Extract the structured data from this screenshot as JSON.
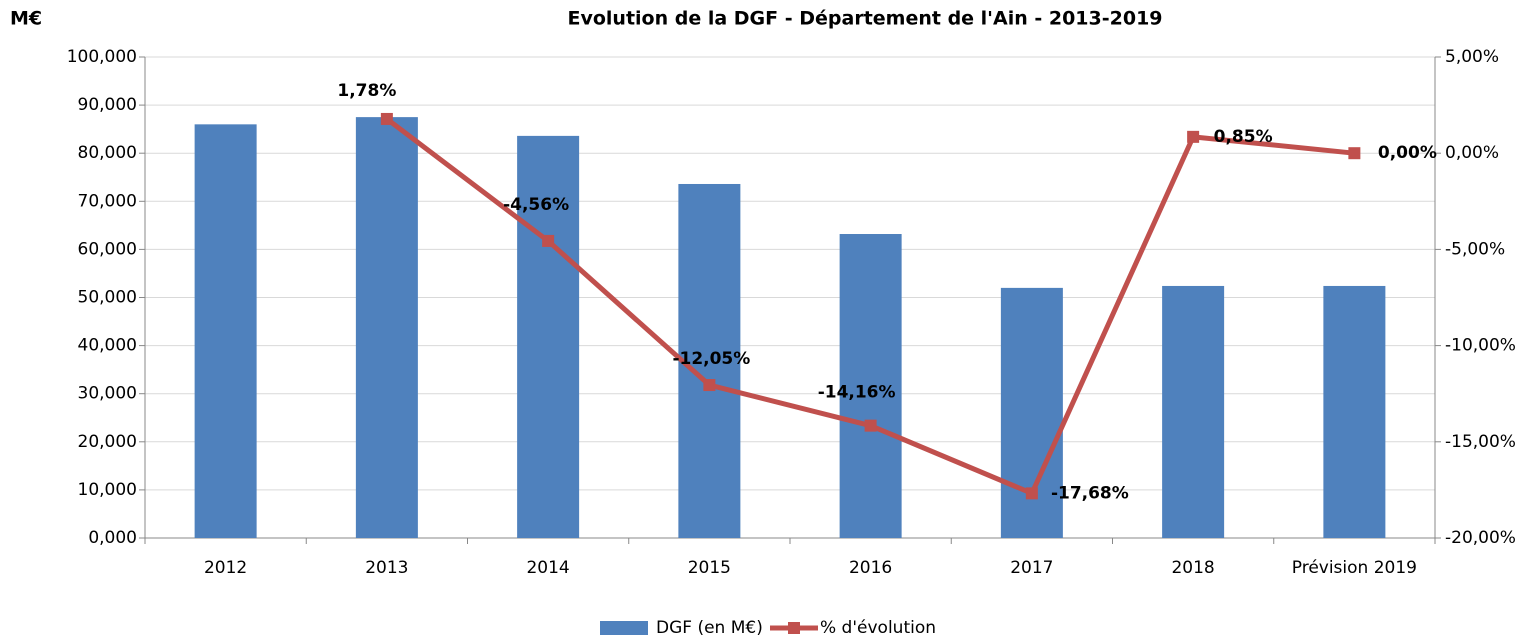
{
  "chart_data": {
    "type": "bar_line",
    "title": "Evolution de la DGF - Département de l'Ain - 2013-2019",
    "y_label": "M€",
    "categories": [
      "2012",
      "2013",
      "2014",
      "2015",
      "2016",
      "2017",
      "2018",
      "Prévision 2019"
    ],
    "series": [
      {
        "name": "DGF (en M€)",
        "type": "bar",
        "color": "#4f81bd",
        "values": [
          86.0,
          87.5,
          83.6,
          73.6,
          63.2,
          52.0,
          52.4,
          52.4
        ]
      },
      {
        "name": "% d'évolution",
        "type": "line",
        "axis": "y2",
        "color": "#c0504d",
        "values": [
          null,
          1.78,
          -4.56,
          -12.05,
          -14.16,
          -17.68,
          0.85,
          0.0
        ],
        "value_labels": [
          null,
          "1,78%",
          "-4,56%",
          "-12,05%",
          "-14,16%",
          "-17,68%",
          "0,85%",
          "0,00%"
        ]
      }
    ],
    "ylim": [
      0,
      100
    ],
    "yticks": [
      {
        "value": 0,
        "label": "0,000"
      },
      {
        "value": 10,
        "label": "10,000"
      },
      {
        "value": 20,
        "label": "20,000"
      },
      {
        "value": 30,
        "label": "30,000"
      },
      {
        "value": 40,
        "label": "40,000"
      },
      {
        "value": 50,
        "label": "50,000"
      },
      {
        "value": 60,
        "label": "60,000"
      },
      {
        "value": 70,
        "label": "70,000"
      },
      {
        "value": 80,
        "label": "80,000"
      },
      {
        "value": 90,
        "label": "90,000"
      },
      {
        "value": 100,
        "label": "100,000"
      }
    ],
    "y2lim": [
      -20,
      5
    ],
    "y2ticks": [
      {
        "value": -20,
        "label": "-20,00%"
      },
      {
        "value": -15,
        "label": "-15,00%"
      },
      {
        "value": -10,
        "label": "-10,00%"
      },
      {
        "value": -5,
        "label": "-5,00%"
      },
      {
        "value": 0,
        "label": "0,00%"
      },
      {
        "value": 5,
        "label": "5,00%"
      }
    ],
    "grid": true,
    "legend": "bottom"
  }
}
